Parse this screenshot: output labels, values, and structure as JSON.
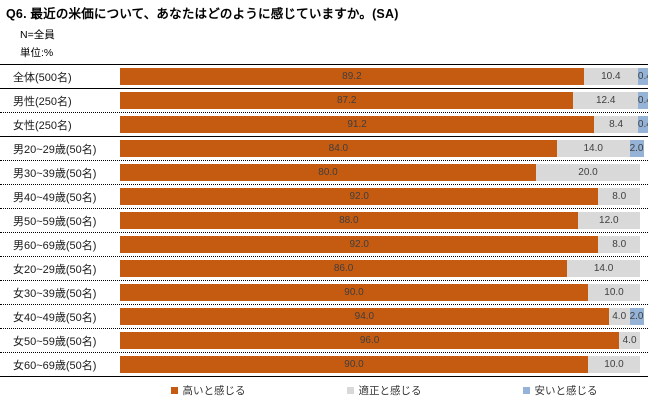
{
  "title": "Q6. 最近の米価について、あなたはどのように感じていますか。(SA)",
  "meta": {
    "n_label": "N=全員",
    "unit_label": "単位:%"
  },
  "chart_data": {
    "type": "bar",
    "subtype": "stacked-horizontal-100percent",
    "unit": "%",
    "xlim": [
      0,
      100
    ],
    "grid": false,
    "value_labels": true,
    "value_label_format": "one-decimal",
    "legend_position": "bottom",
    "categories": [
      "全体(500名)",
      "男性(250名)",
      "女性(250名)",
      "男20~29歳(50名)",
      "男30~39歳(50名)",
      "男40~49歳(50名)",
      "男50~59歳(50名)",
      "男60~69歳(50名)",
      "女20~29歳(50名)",
      "女30~39歳(50名)",
      "女40~49歳(50名)",
      "女50~59歳(50名)",
      "女60~69歳(50名)"
    ],
    "series": [
      {
        "name": "高いと感じる",
        "color": "#C55A11",
        "values": [
          89.2,
          87.2,
          91.2,
          84.0,
          80.0,
          92.0,
          88.0,
          92.0,
          86.0,
          90.0,
          94.0,
          96.0,
          90.0
        ]
      },
      {
        "name": "適正と感じる",
        "color": "#D9D9D9",
        "values": [
          10.4,
          12.4,
          8.4,
          14.0,
          20.0,
          8.0,
          12.0,
          8.0,
          14.0,
          10.0,
          4.0,
          4.0,
          10.0
        ]
      },
      {
        "name": "安いと感じる",
        "color": "#95B3D7",
        "values": [
          0.4,
          0.4,
          0.4,
          2.0,
          0.0,
          0.0,
          0.0,
          0.0,
          0.0,
          0.0,
          2.0,
          0.0,
          0.0
        ]
      }
    ],
    "group_breaks_after": [
      0,
      2,
      12
    ]
  }
}
